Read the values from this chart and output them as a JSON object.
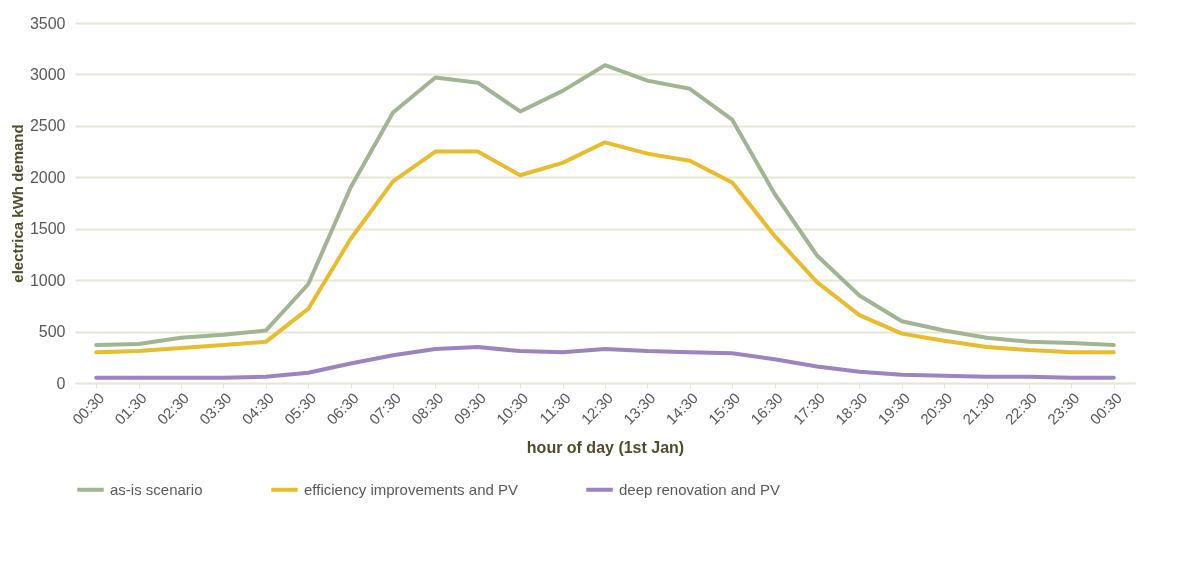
{
  "chart_data": {
    "type": "line",
    "xlabel": "hour of day (1st Jan)",
    "ylabel": "electrica kWh demand",
    "categories": [
      "00:30",
      "01:30",
      "02:30",
      "03:30",
      "04:30",
      "05:30",
      "06:30",
      "07:30",
      "08:30",
      "09:30",
      "10:30",
      "11:30",
      "12:30",
      "13:30",
      "14:30",
      "15:30",
      "16:30",
      "17:30",
      "18:30",
      "19:30",
      "20:30",
      "21:30",
      "22:30",
      "23:30",
      "00:30"
    ],
    "series": [
      {
        "name": "as-is scenario",
        "color": "#a2b592",
        "values": [
          370,
          380,
          440,
          470,
          510,
          960,
          1900,
          2630,
          2970,
          2920,
          2640,
          2840,
          3090,
          2940,
          2860,
          2560,
          1840,
          1240,
          850,
          600,
          510,
          440,
          400,
          390,
          370
        ]
      },
      {
        "name": "efficiency improvements and PV",
        "color": "#e8bc2c",
        "values": [
          300,
          310,
          340,
          370,
          400,
          720,
          1400,
          1960,
          2250,
          2250,
          2020,
          2140,
          2340,
          2230,
          2160,
          1950,
          1430,
          980,
          660,
          480,
          410,
          350,
          320,
          300,
          300
        ]
      },
      {
        "name": "deep renovation and PV",
        "color": "#9c84c0",
        "values": [
          50,
          50,
          50,
          50,
          60,
          100,
          190,
          270,
          330,
          350,
          310,
          300,
          330,
          310,
          300,
          290,
          230,
          160,
          110,
          80,
          70,
          60,
          60,
          50,
          50
        ]
      }
    ],
    "ylim": [
      0,
      3500
    ],
    "yticks": [
      0,
      500,
      1000,
      1500,
      2000,
      2500,
      3000,
      3500
    ],
    "grid": "y",
    "legend": "bottom",
    "marker": "none",
    "line_style": "solid"
  }
}
